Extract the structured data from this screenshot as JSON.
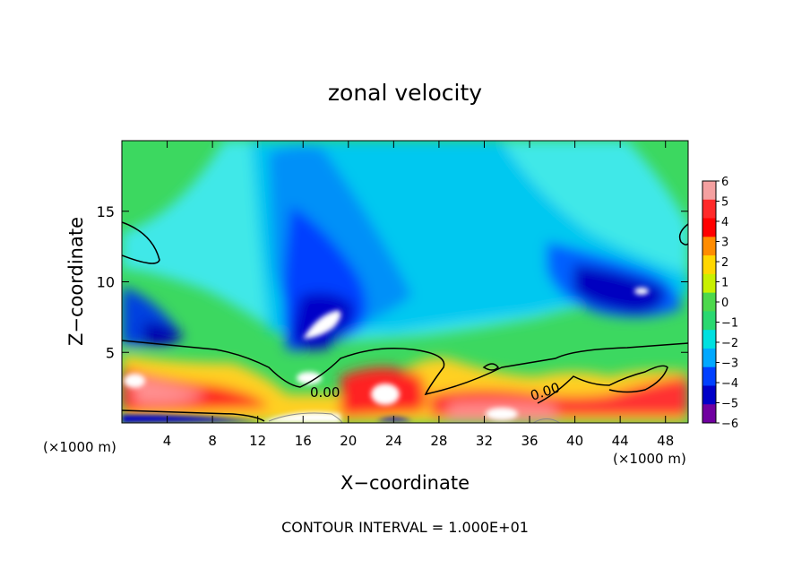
{
  "chart_data": {
    "type": "heatmap",
    "title": "zonal velocity",
    "xlabel": "X−coordinate",
    "ylabel": "Z−coordinate",
    "x_unit_left": "(×1000 m)",
    "x_unit_right": "(×1000 m)",
    "footer": "CONTOUR INTERVAL = 1.000E+01",
    "xlim": [
      0,
      50
    ],
    "ylim": [
      0,
      20
    ],
    "x_ticks": [
      4,
      8,
      12,
      16,
      20,
      24,
      28,
      32,
      36,
      40,
      44,
      48
    ],
    "y_ticks": [
      5,
      10,
      15
    ],
    "contour_labels": [
      "0.00",
      "0.00"
    ],
    "colorbar": {
      "levels": [
        6,
        5,
        4,
        3,
        2,
        1,
        0,
        -1,
        -2,
        -3,
        -4,
        -5,
        -6
      ],
      "labels": [
        "6",
        "5",
        "4",
        "3",
        "2",
        "1",
        "0",
        "−1",
        "−2",
        "−3",
        "−4",
        "−5",
        "−6"
      ],
      "colors": [
        "#f4a0a0",
        "#ff2a2a",
        "#ff0000",
        "#ff8c00",
        "#ffd700",
        "#c8f000",
        "#4cd84c",
        "#2ad870",
        "#00e0e0",
        "#00a8ff",
        "#0040ff",
        "#0000c8",
        "#7000a0"
      ]
    }
  }
}
